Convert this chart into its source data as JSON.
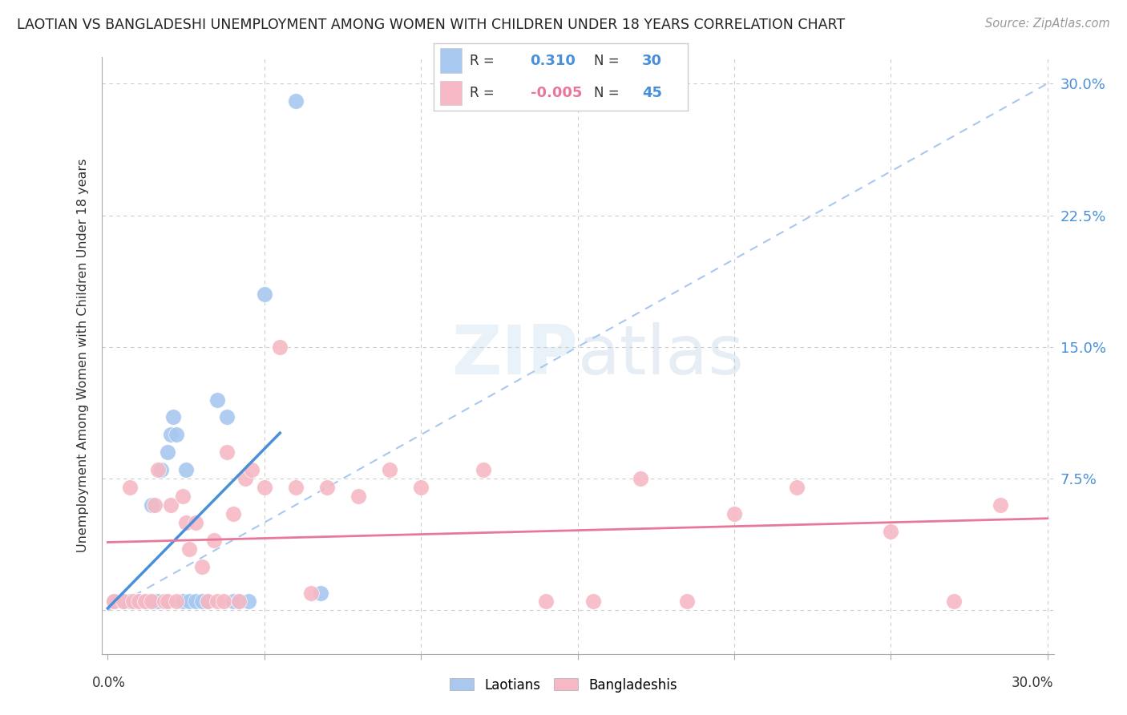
{
  "title": "LAOTIAN VS BANGLADESHI UNEMPLOYMENT AMONG WOMEN WITH CHILDREN UNDER 18 YEARS CORRELATION CHART",
  "source": "Source: ZipAtlas.com",
  "ylabel": "Unemployment Among Women with Children Under 18 years",
  "xmin": 0.0,
  "xmax": 0.3,
  "ymin": -0.025,
  "ymax": 0.315,
  "yticks": [
    0.0,
    0.075,
    0.15,
    0.225,
    0.3
  ],
  "ytick_labels": [
    "",
    "7.5%",
    "15.0%",
    "22.5%",
    "30.0%"
  ],
  "xticks": [
    0.0,
    0.05,
    0.1,
    0.15,
    0.2,
    0.25,
    0.3
  ],
  "legend_laotian_R": "0.310",
  "legend_laotian_N": "30",
  "legend_bangladeshi_R": "-0.005",
  "legend_bangladeshi_N": "45",
  "laotian_color": "#a8c8f0",
  "bangladeshi_color": "#f5b8c4",
  "laotian_line_color": "#4a90d9",
  "bangladeshi_line_color": "#e8789a",
  "diagonal_color": "#a8c8f0",
  "watermark_color": "#dceaf8",
  "laotian_x": [
    0.002,
    0.005,
    0.007,
    0.009,
    0.01,
    0.012,
    0.013,
    0.014,
    0.015,
    0.016,
    0.017,
    0.018,
    0.019,
    0.02,
    0.021,
    0.022,
    0.024,
    0.025,
    0.026,
    0.028,
    0.03,
    0.032,
    0.035,
    0.038,
    0.04,
    0.042,
    0.045,
    0.05,
    0.06,
    0.068
  ],
  "laotian_y": [
    0.005,
    0.005,
    0.005,
    0.005,
    0.005,
    0.005,
    0.005,
    0.06,
    0.005,
    0.005,
    0.08,
    0.005,
    0.09,
    0.1,
    0.11,
    0.1,
    0.005,
    0.08,
    0.005,
    0.005,
    0.005,
    0.005,
    0.12,
    0.11,
    0.005,
    0.005,
    0.005,
    0.18,
    0.29,
    0.01
  ],
  "bangladeshi_x": [
    0.002,
    0.005,
    0.007,
    0.008,
    0.01,
    0.012,
    0.014,
    0.015,
    0.016,
    0.018,
    0.019,
    0.02,
    0.022,
    0.024,
    0.025,
    0.026,
    0.028,
    0.03,
    0.032,
    0.034,
    0.035,
    0.037,
    0.038,
    0.04,
    0.042,
    0.044,
    0.046,
    0.05,
    0.055,
    0.06,
    0.065,
    0.07,
    0.08,
    0.09,
    0.1,
    0.12,
    0.14,
    0.155,
    0.17,
    0.185,
    0.2,
    0.22,
    0.25,
    0.27,
    0.285
  ],
  "bangladeshi_y": [
    0.005,
    0.005,
    0.07,
    0.005,
    0.005,
    0.005,
    0.005,
    0.06,
    0.08,
    0.005,
    0.005,
    0.06,
    0.005,
    0.065,
    0.05,
    0.035,
    0.05,
    0.025,
    0.005,
    0.04,
    0.005,
    0.005,
    0.09,
    0.055,
    0.005,
    0.075,
    0.08,
    0.07,
    0.15,
    0.07,
    0.01,
    0.07,
    0.065,
    0.08,
    0.07,
    0.08,
    0.005,
    0.005,
    0.075,
    0.005,
    0.055,
    0.07,
    0.045,
    0.005,
    0.06
  ],
  "lao_line_x0": 0.0,
  "lao_line_x1": 0.055,
  "ban_line_x0": 0.0,
  "ban_line_x1": 0.3
}
